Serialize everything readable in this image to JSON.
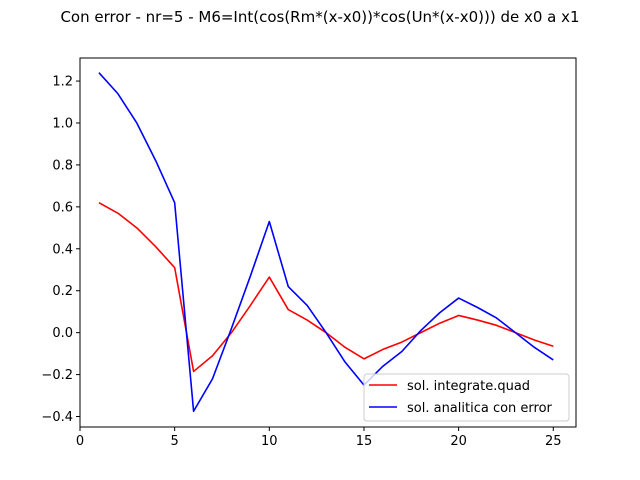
{
  "chart_data": {
    "type": "line",
    "title": "Con error - nr=5 - M6=Int(cos(Rm*(x-x0))*cos(Un*(x-x0))) de x0 a x1",
    "xlabel": "",
    "ylabel": "",
    "xlim": [
      0,
      26.2
    ],
    "ylim": [
      -0.45,
      1.31
    ],
    "xticks": [
      0,
      5,
      10,
      15,
      20,
      25
    ],
    "yticks": [
      -0.4,
      -0.2,
      0.0,
      0.2,
      0.4,
      0.6,
      0.8,
      1.0,
      1.2
    ],
    "ytick_labels": [
      "−0.4",
      "−0.2",
      "0.0",
      "0.2",
      "0.4",
      "0.6",
      "0.8",
      "1.0",
      "1.2"
    ],
    "grid": false,
    "legend_position": "lower-right",
    "x": [
      1,
      2,
      3,
      4,
      5,
      6,
      7,
      8,
      9,
      10,
      11,
      12,
      13,
      14,
      15,
      16,
      17,
      18,
      19,
      20,
      21,
      22,
      23,
      24,
      25
    ],
    "series": [
      {
        "name": "sol. integrate.quad",
        "color": "#ff0000",
        "values": [
          0.62,
          0.57,
          0.5,
          0.41,
          0.31,
          -0.185,
          -0.11,
          0.0,
          0.13,
          0.265,
          0.11,
          0.06,
          0.0,
          -0.07,
          -0.125,
          -0.08,
          -0.045,
          0.0,
          0.045,
          0.082,
          0.06,
          0.035,
          0.0,
          -0.035,
          -0.065
        ]
      },
      {
        "name": "sol. analitica con error",
        "color": "#0000ff",
        "values": [
          1.24,
          1.14,
          1.0,
          0.82,
          0.62,
          -0.375,
          -0.22,
          0.02,
          0.27,
          0.53,
          0.22,
          0.13,
          0.0,
          -0.14,
          -0.25,
          -0.16,
          -0.09,
          0.01,
          0.095,
          0.165,
          0.12,
          0.07,
          0.0,
          -0.07,
          -0.13
        ]
      }
    ]
  }
}
